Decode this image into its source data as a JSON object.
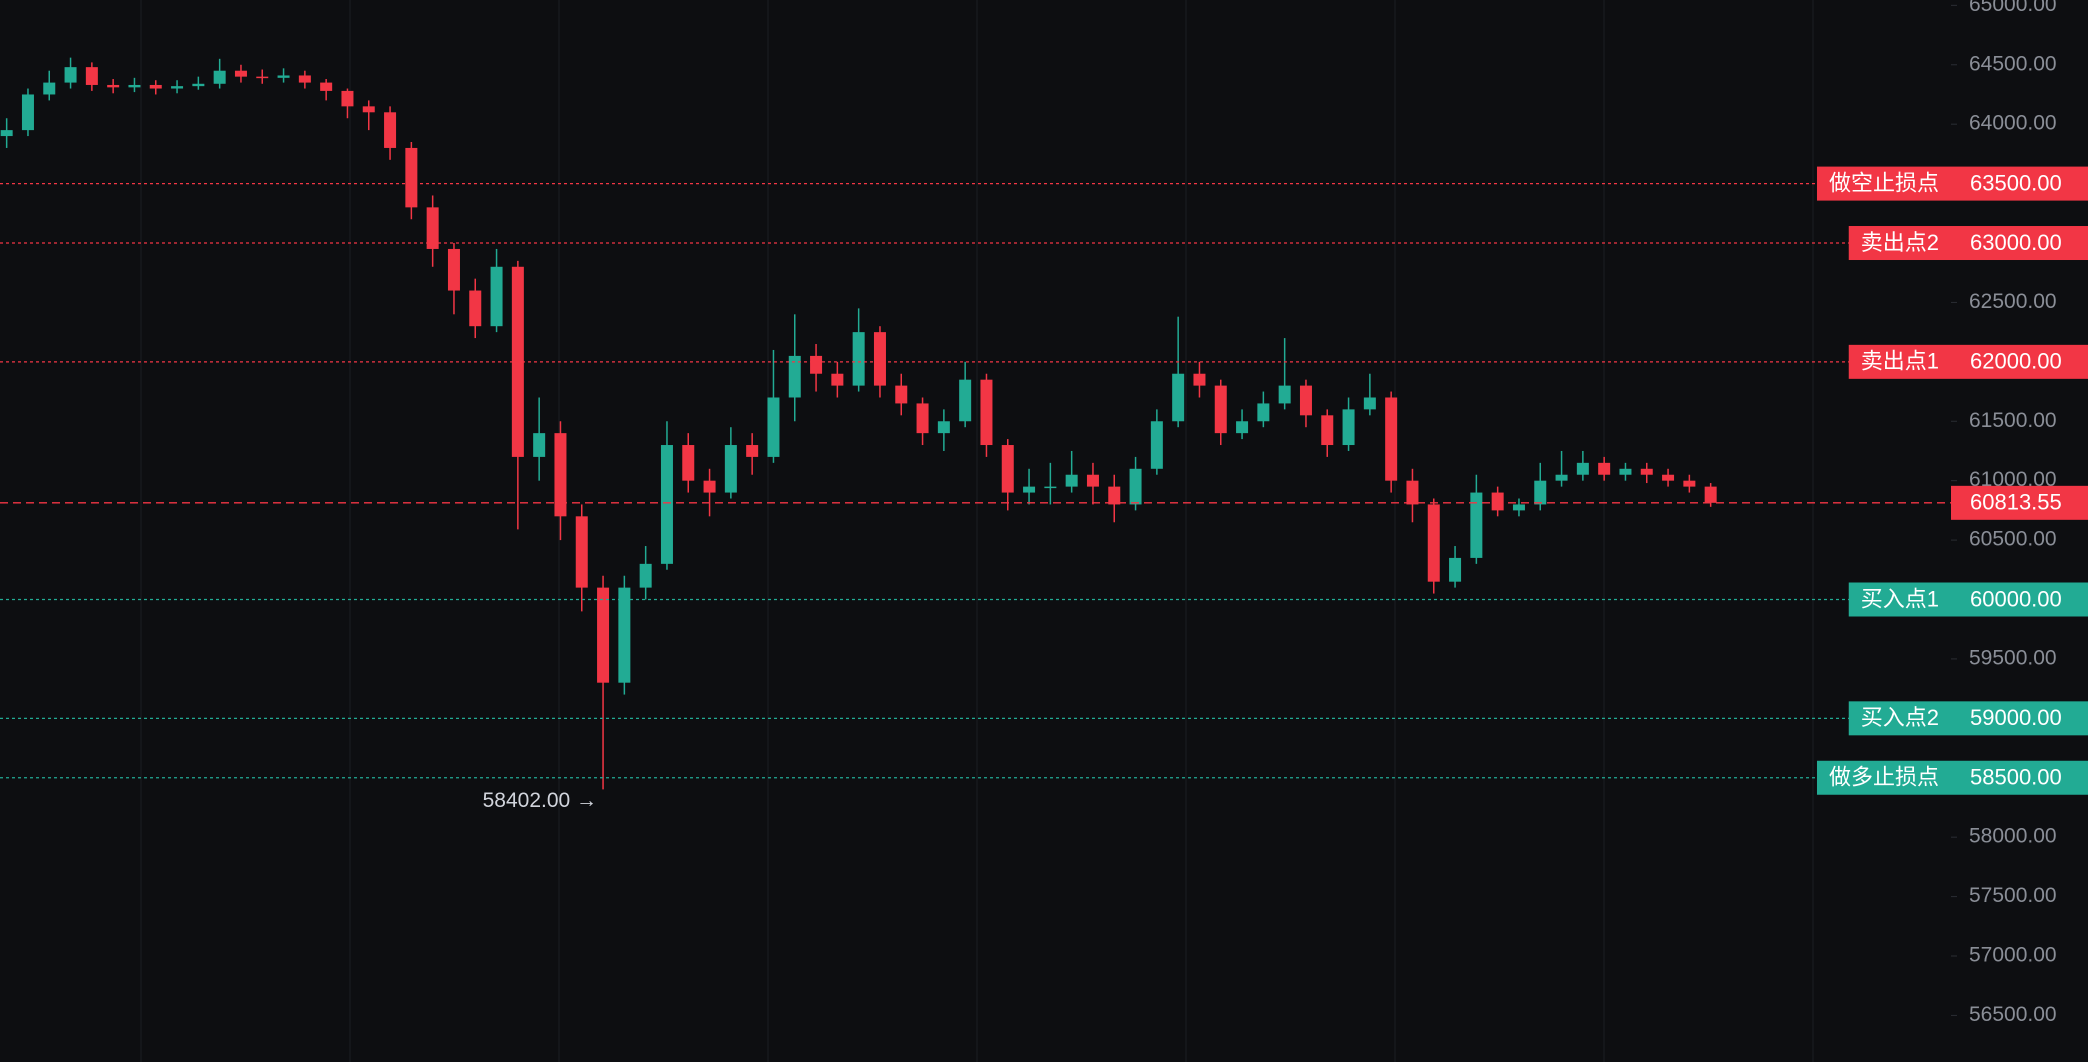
{
  "chart_data": {
    "type": "candlestick",
    "up_color": "#22ab94",
    "down_color": "#f23645",
    "ylim": [
      56108,
      65045
    ],
    "yticks": [
      {
        "value": 65000,
        "label": "65000.00"
      },
      {
        "value": 64500,
        "label": "64500.00"
      },
      {
        "value": 64000,
        "label": "64000.00"
      },
      {
        "value": 63500,
        "label": "63500.00"
      },
      {
        "value": 63000,
        "label": "63000.00"
      },
      {
        "value": 62500,
        "label": "62500.00"
      },
      {
        "value": 62000,
        "label": "62000.00"
      },
      {
        "value": 61500,
        "label": "61500.00"
      },
      {
        "value": 61000,
        "label": "61000.00"
      },
      {
        "value": 60500,
        "label": "60500.00"
      },
      {
        "value": 60000,
        "label": "60000.00"
      },
      {
        "value": 59500,
        "label": "59500.00"
      },
      {
        "value": 59000,
        "label": "59000.00"
      },
      {
        "value": 58500,
        "label": "58500.00"
      },
      {
        "value": 58000,
        "label": "58000.00"
      },
      {
        "value": 57500,
        "label": "57500.00"
      },
      {
        "value": 57000,
        "label": "57000.00"
      },
      {
        "value": 56500,
        "label": "56500.00"
      }
    ],
    "open": [
      63900,
      63950,
      64250,
      64350,
      64480,
      64330,
      64310,
      64330,
      64300,
      64320,
      64340,
      64450,
      64400,
      64390,
      64410,
      64350,
      64280,
      64150,
      64100,
      63800,
      63300,
      62950,
      62600,
      62300,
      62800,
      61200,
      61400,
      60700,
      60100,
      59300,
      60100,
      60300,
      61300,
      61000,
      60900,
      61300,
      61200,
      61700,
      62050,
      61900,
      61800,
      62250,
      61800,
      61650,
      61400,
      61500,
      61850,
      61300,
      60900,
      60950,
      60950,
      61050,
      60950,
      60800,
      61100,
      61500,
      61900,
      61800,
      61400,
      61500,
      61650,
      61800,
      61550,
      61300,
      61600,
      61700,
      61000,
      60800,
      60150,
      60350,
      60900,
      60750,
      60800,
      61000,
      61050,
      61150,
      61050,
      61100,
      61050,
      61000,
      60950
    ],
    "high": [
      64050,
      64300,
      64450,
      64560,
      64520,
      64380,
      64390,
      64370,
      64370,
      64400,
      64550,
      64500,
      64460,
      64470,
      64450,
      64380,
      64300,
      64200,
      64150,
      63850,
      63400,
      63000,
      62700,
      62950,
      62850,
      61700,
      61500,
      60800,
      60200,
      60200,
      60450,
      61500,
      61400,
      61100,
      61450,
      61400,
      62100,
      62400,
      62150,
      62000,
      62450,
      62300,
      61900,
      61700,
      61600,
      62000,
      61900,
      61350,
      61100,
      61150,
      61250,
      61150,
      61050,
      61200,
      61600,
      62380,
      62000,
      61850,
      61600,
      61750,
      62200,
      61850,
      61600,
      61700,
      61900,
      61750,
      61100,
      60850,
      60450,
      61050,
      60950,
      60850,
      61150,
      61250,
      61250,
      61200,
      61150,
      61150,
      61100,
      61050,
      60980
    ],
    "low": [
      63800,
      63900,
      64200,
      64300,
      64280,
      64260,
      64270,
      64250,
      64260,
      64290,
      64300,
      64350,
      64340,
      64350,
      64300,
      64200,
      64050,
      63950,
      63700,
      63200,
      62800,
      62400,
      62200,
      62250,
      60590,
      61000,
      60500,
      59900,
      58402,
      59200,
      60000,
      60250,
      60900,
      60700,
      60850,
      61050,
      61150,
      61500,
      61750,
      61700,
      61750,
      61700,
      61550,
      61300,
      61250,
      61450,
      61200,
      60750,
      60800,
      60800,
      60900,
      60800,
      60650,
      60750,
      61050,
      61450,
      61700,
      61300,
      61350,
      61450,
      61600,
      61450,
      61200,
      61250,
      61550,
      60900,
      60650,
      60050,
      60100,
      60300,
      60700,
      60700,
      60750,
      60950,
      61000,
      61000,
      61000,
      60980,
      60950,
      60900,
      60780
    ],
    "close": [
      63950,
      64250,
      64350,
      64480,
      64330,
      64310,
      64330,
      64300,
      64320,
      64340,
      64450,
      64400,
      64390,
      64410,
      64350,
      64280,
      64150,
      64100,
      63800,
      63300,
      62950,
      62600,
      62300,
      62800,
      61200,
      61400,
      60700,
      60100,
      59300,
      60100,
      60300,
      61300,
      61000,
      60900,
      61300,
      61200,
      61700,
      62050,
      61900,
      61800,
      62250,
      61800,
      61650,
      61400,
      61500,
      61850,
      61300,
      60900,
      60950,
      60950,
      61050,
      60950,
      60800,
      61100,
      61500,
      61900,
      61800,
      61400,
      61500,
      61650,
      61800,
      61550,
      61300,
      61600,
      61700,
      61000,
      60800,
      60150,
      60350,
      60900,
      60750,
      60800,
      61000,
      61050,
      61150,
      61050,
      61100,
      61050,
      61000,
      60950,
      60813.55
    ],
    "levels": [
      {
        "value": 63500,
        "label": "做空止损点",
        "value_label": "63500.00",
        "color": "#f23645"
      },
      {
        "value": 63000,
        "label": "卖出点2",
        "value_label": "63000.00",
        "color": "#f23645"
      },
      {
        "value": 62000,
        "label": "卖出点1",
        "value_label": "62000.00",
        "color": "#f23645"
      },
      {
        "value": 60000,
        "label": "买入点1",
        "value_label": "60000.00",
        "color": "#22ab94"
      },
      {
        "value": 59000,
        "label": "买入点2",
        "value_label": "59000.00",
        "color": "#22ab94"
      },
      {
        "value": 58500,
        "label": "做多止损点",
        "value_label": "58500.00",
        "color": "#22ab94"
      }
    ],
    "last_price": {
      "value": 60813.55,
      "label": "60813.55",
      "color": "#f23645"
    },
    "min_label": "58402.00 →"
  }
}
